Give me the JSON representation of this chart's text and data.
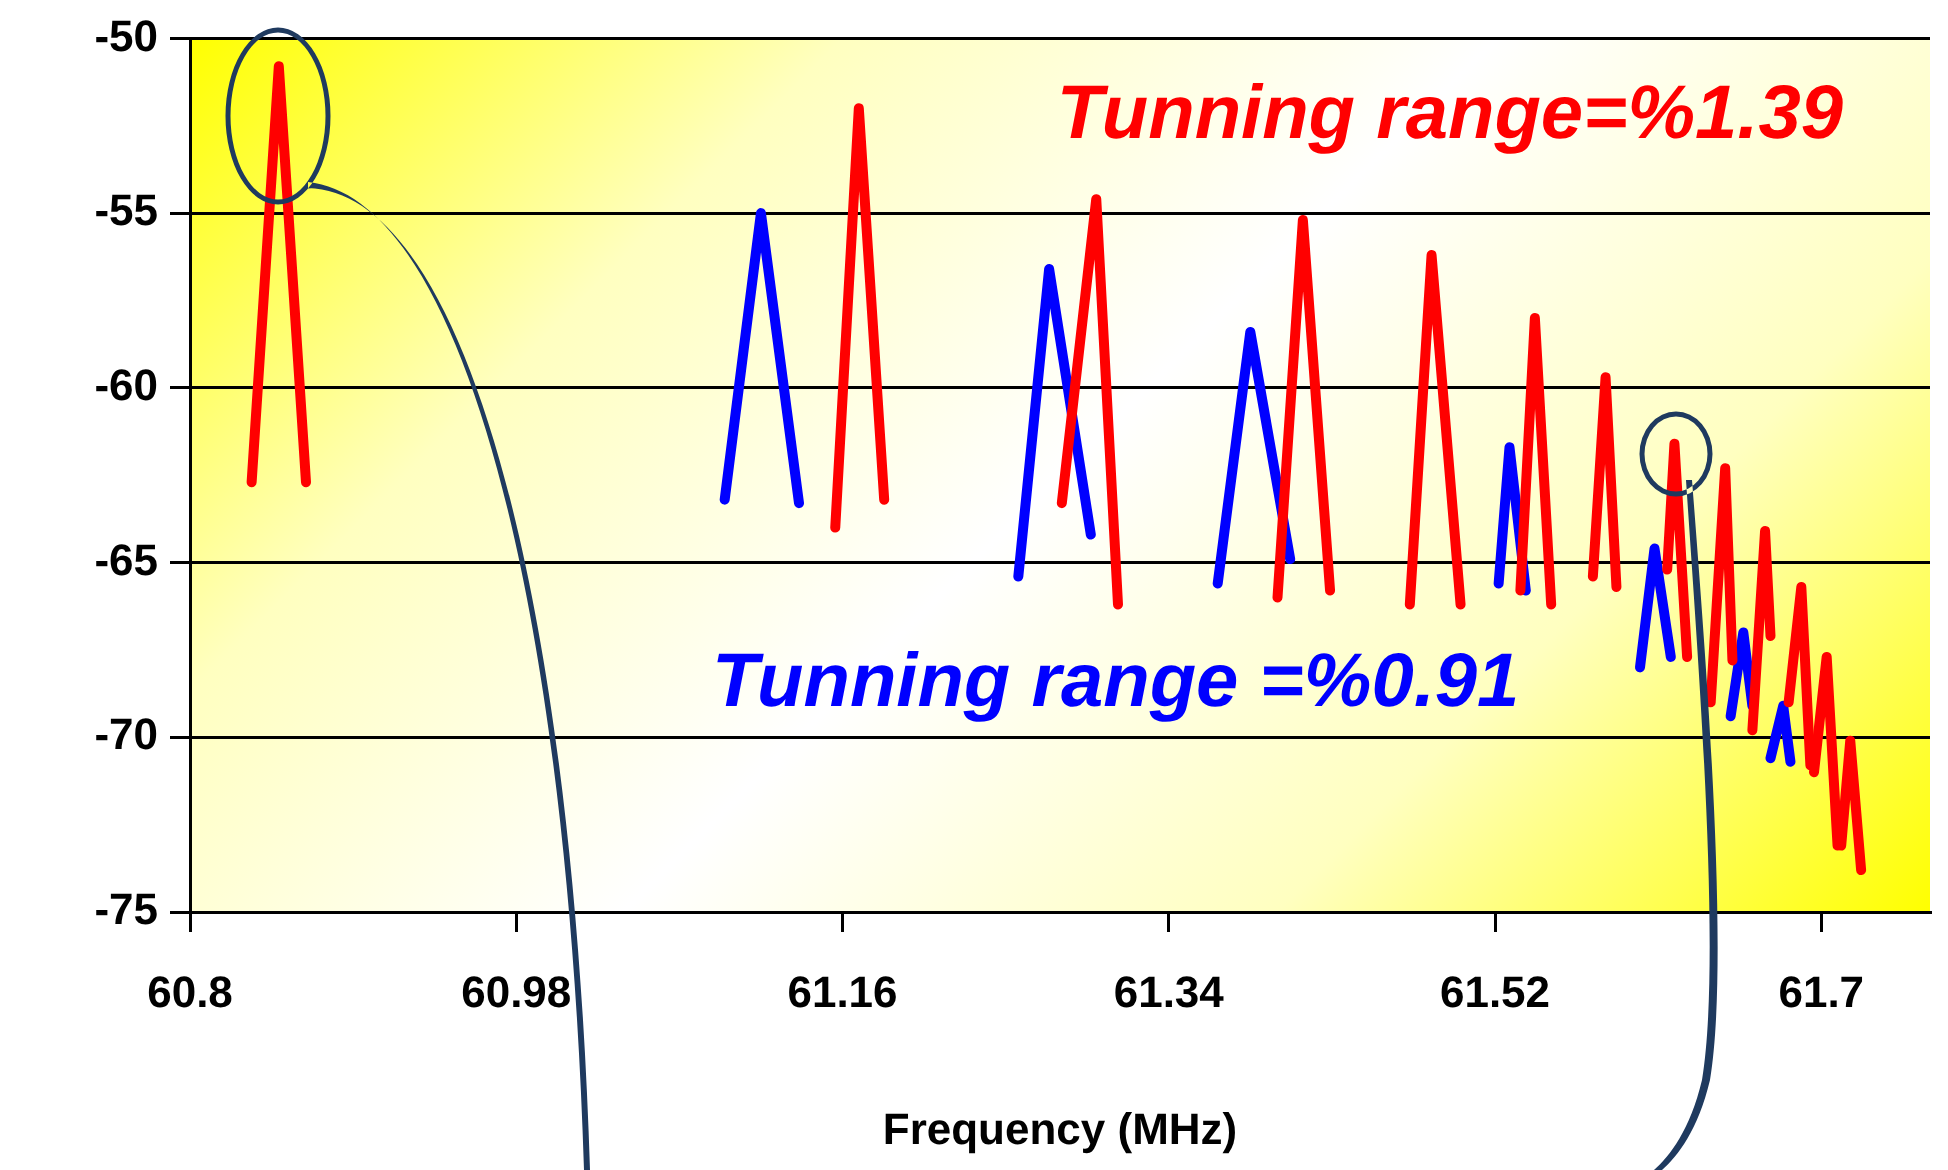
{
  "chart_data": {
    "type": "line",
    "xlabel": "Frequency (MHz)",
    "xlim": [
      60.8,
      61.76
    ],
    "xticks": [
      60.8,
      60.98,
      61.16,
      61.34,
      61.52,
      61.7
    ],
    "ylim": [
      -75,
      -50
    ],
    "yticks": [
      -75,
      -70,
      -65,
      -60,
      -55,
      -50
    ],
    "grid": "y",
    "marker": "none",
    "line_style": "solid",
    "series": [
      {
        "color": "#ff0000",
        "x": [
          60.834,
          60.849,
          60.864
        ],
        "values": [
          -62.7,
          -50.8,
          -62.7
        ]
      },
      {
        "color": "#ff0000",
        "x": [
          61.156,
          61.169,
          61.183
        ],
        "values": [
          -64.0,
          -52.0,
          -63.2
        ]
      },
      {
        "color": "#ff0000",
        "x": [
          61.281,
          61.3,
          61.312
        ],
        "values": [
          -63.3,
          -54.6,
          -66.2
        ]
      },
      {
        "color": "#ff0000",
        "x": [
          61.4,
          61.414,
          61.429
        ],
        "values": [
          -66.0,
          -55.2,
          -65.8
        ]
      },
      {
        "color": "#ff0000",
        "x": [
          61.473,
          61.485,
          61.501
        ],
        "values": [
          -66.2,
          -56.2,
          -66.2
        ]
      },
      {
        "color": "#ff0000",
        "x": [
          61.534,
          61.542,
          61.551
        ],
        "values": [
          -65.8,
          -58.0,
          -66.2
        ]
      },
      {
        "color": "#ff0000",
        "x": [
          61.574,
          61.581,
          61.587
        ],
        "values": [
          -65.4,
          -59.7,
          -65.7
        ]
      },
      {
        "color": "#ff0000",
        "x": [
          61.615,
          61.619,
          61.626
        ],
        "values": [
          -65.2,
          -61.6,
          -67.7
        ]
      },
      {
        "color": "#ff0000",
        "x": [
          61.639,
          61.647,
          61.651
        ],
        "values": [
          -69.0,
          -62.3,
          -67.8
        ]
      },
      {
        "color": "#ff0000",
        "x": [
          61.662,
          61.669,
          61.672
        ],
        "values": [
          -69.8,
          -64.1,
          -67.1
        ]
      },
      {
        "color": "#ff0000",
        "x": [
          61.682,
          61.689,
          61.694
        ],
        "values": [
          -69.0,
          -65.7,
          -70.8
        ]
      },
      {
        "color": "#ff0000",
        "x": [
          61.696,
          61.703,
          61.709
        ],
        "values": [
          -71.0,
          -67.7,
          -73.1
        ]
      },
      {
        "color": "#ff0000",
        "x": [
          61.711,
          61.716,
          61.722
        ],
        "values": [
          -73.1,
          -70.1,
          -73.8
        ]
      },
      {
        "color": "#0000ff",
        "x": [
          61.095,
          61.115,
          61.136
        ],
        "values": [
          -63.2,
          -55.0,
          -63.3
        ]
      },
      {
        "color": "#0000ff",
        "x": [
          61.257,
          61.274,
          61.297
        ],
        "values": [
          -65.4,
          -56.6,
          -64.2
        ]
      },
      {
        "color": "#0000ff",
        "x": [
          61.367,
          61.385,
          61.407
        ],
        "values": [
          -65.6,
          -58.4,
          -64.9
        ]
      },
      {
        "color": "#0000ff",
        "x": [
          61.522,
          61.528,
          61.537
        ],
        "values": [
          -65.6,
          -61.7,
          -65.8
        ]
      },
      {
        "color": "#0000ff",
        "x": [
          61.6,
          61.608,
          61.617
        ],
        "values": [
          -68.0,
          -64.6,
          -67.7
        ]
      },
      {
        "color": "#0000ff",
        "x": [
          61.65,
          61.657,
          61.662
        ],
        "values": [
          -69.4,
          -67.0,
          -69.1
        ]
      },
      {
        "color": "#0000ff",
        "x": [
          61.672,
          61.679,
          61.683
        ],
        "values": [
          -70.6,
          -69.1,
          -70.7
        ]
      }
    ],
    "annotations": [
      "Tunning range=%1.39",
      "Tunning range =%0.91"
    ]
  }
}
